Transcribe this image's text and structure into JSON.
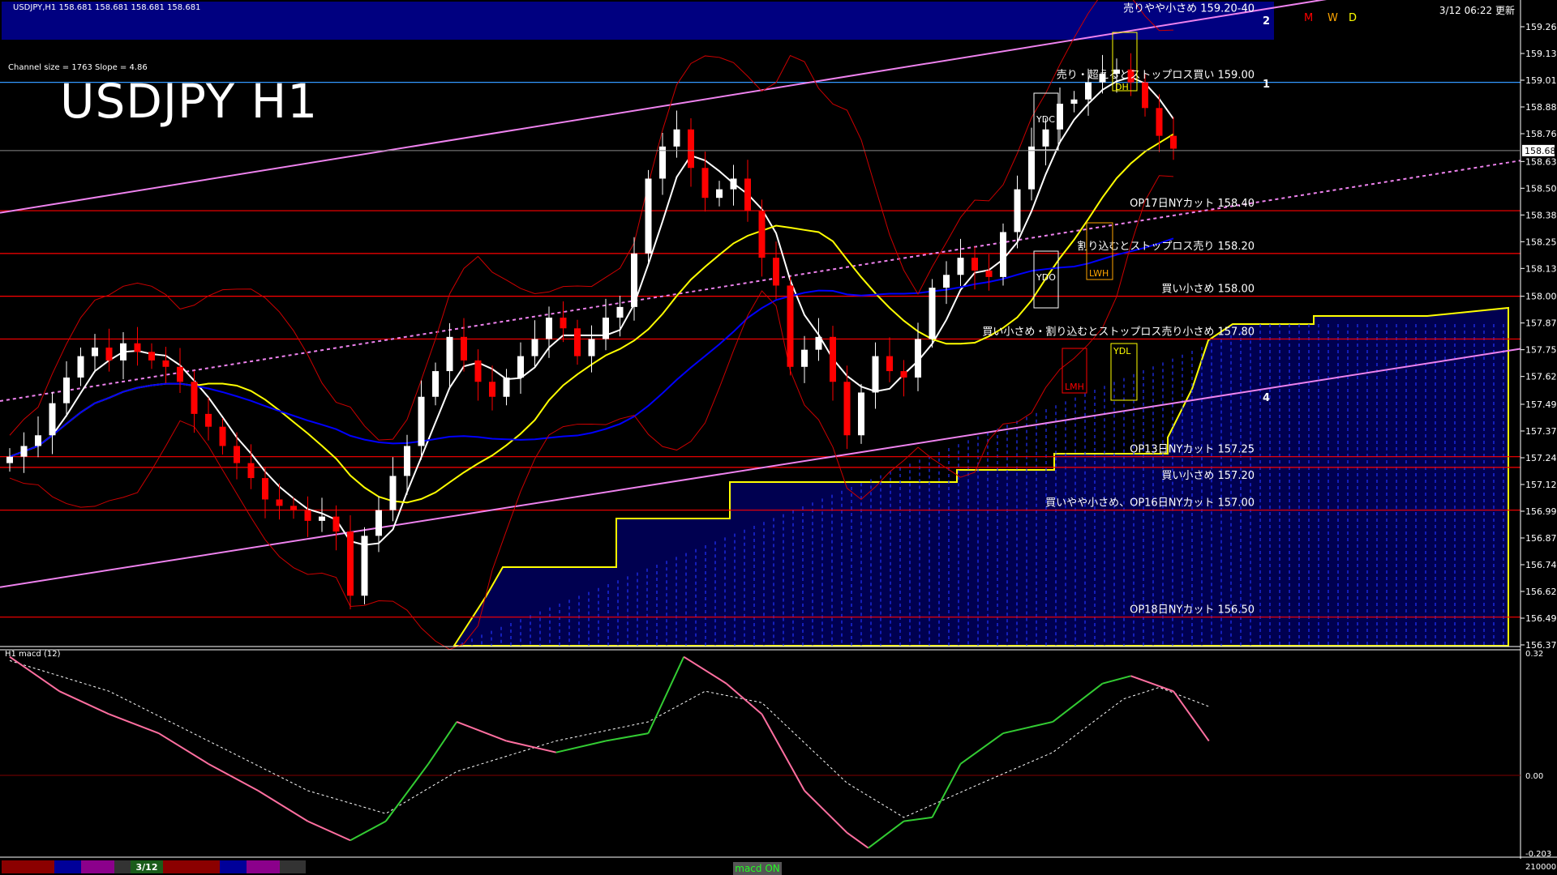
{
  "window": {
    "header": "USDJPY,H1  158.681 158.681 158.681 158.681",
    "updated": "3/12 06:22 更新",
    "channel_info": "Channel size = 1763 Slope = 4.86",
    "big_title": "USDJPY H1",
    "macd_label": "H1  macd (12)",
    "bottom_date": "3/12",
    "macd_toggle": "macd ON"
  },
  "colors": {
    "background": "#000000",
    "top_band": "#000080",
    "level_line": "#ff0000",
    "resistance_line": "#3399ff",
    "channel": "#ee82ee",
    "bull": "#ffffff",
    "bear": "#ff0000",
    "ma_fast": "#ffffff",
    "ma_mid": "#ffff00",
    "ma_slow": "#0000ff",
    "macd_up": "#33cc33",
    "macd_down": "#ff6fa0",
    "signal": "#ffffff"
  },
  "chart_data": [
    {
      "type": "candlestick",
      "title": "USDJPY H1",
      "ylim": [
        156.37,
        159.26
      ],
      "yticks": [
        "159.260",
        "159.135",
        "159.010",
        "158.885",
        "158.760",
        "158.630",
        "158.505",
        "158.380",
        "158.255",
        "158.130",
        "158.000",
        "157.875",
        "157.750",
        "157.625",
        "157.495",
        "157.370",
        "157.245",
        "157.120",
        "156.995",
        "156.870",
        "156.745",
        "156.620",
        "156.495",
        "156.370"
      ],
      "current_price": "158.681",
      "closes": [
        157.25,
        157.3,
        157.35,
        157.5,
        157.62,
        157.72,
        157.76,
        157.7,
        157.78,
        157.74,
        157.7,
        157.67,
        157.6,
        157.45,
        157.39,
        157.3,
        157.22,
        157.15,
        157.05,
        157.02,
        157.0,
        156.95,
        156.97,
        156.9,
        156.6,
        156.88,
        157.0,
        157.16,
        157.3,
        157.53,
        157.65,
        157.81,
        157.7,
        157.6,
        157.53,
        157.62,
        157.72,
        157.8,
        157.9,
        157.85,
        157.72,
        157.8,
        157.9,
        157.95,
        158.2,
        158.55,
        158.7,
        158.78,
        158.6,
        158.46,
        158.5,
        158.55,
        158.4,
        158.18,
        158.05,
        157.67,
        157.75,
        157.81,
        157.6,
        157.35,
        157.55,
        157.72,
        157.65,
        157.62,
        157.8,
        158.04,
        158.1,
        158.18,
        158.12,
        158.09,
        158.3,
        158.5,
        158.7,
        158.78,
        158.9,
        158.92,
        159.0,
        159.04,
        159.06,
        159.0,
        158.88,
        158.75,
        158.69
      ],
      "levels": [
        {
          "price": 159.3,
          "label": "売りやや小さめ 159.20-40",
          "color": "#ffffff",
          "line": false
        },
        {
          "price": 159.0,
          "label": "売り・超えるとストップロス買い 159.00",
          "color": "#3399ff",
          "line": true
        },
        {
          "price": 158.4,
          "label": "OP17日NYカット 158.40",
          "color": "#ff0000",
          "line": true
        },
        {
          "price": 158.2,
          "label": "割り込むとストップロス売り 158.20",
          "color": "#ff0000",
          "line": true
        },
        {
          "price": 158.0,
          "label": "買い小さめ 158.00",
          "color": "#ff0000",
          "line": true
        },
        {
          "price": 157.8,
          "label": "買い小さめ・割り込むとストップロス売り小さめ 157.80",
          "color": "#ff0000",
          "line": true
        },
        {
          "price": 157.25,
          "label": "OP13日NYカット 157.25",
          "color": "#ff0000",
          "line": true
        },
        {
          "price": 157.2,
          "label": "買い小さめ 157.20",
          "color": "#ff0000",
          "line": true
        },
        {
          "price": 157.0,
          "label": "買いやや小さめ、OP16日NYカット 157.00",
          "color": "#ff0000",
          "line": true
        },
        {
          "price": 156.5,
          "label": "OP18日NYカット 156.50",
          "color": "#ff0000",
          "line": true
        }
      ],
      "channel": {
        "upper": [
          [
            0,
            158.39
          ],
          [
            93,
            159.39
          ]
        ],
        "middle": [
          [
            0,
            157.51
          ],
          [
            107,
            158.64
          ]
        ],
        "lower": [
          [
            0,
            156.64
          ],
          [
            107,
            157.76
          ]
        ]
      },
      "markers": [
        "YDC",
        "YDO",
        "YDL",
        "LWH",
        "LMH",
        "DH",
        "M",
        "W",
        "D",
        "1",
        "2",
        "4"
      ]
    },
    {
      "type": "line",
      "title": "H1  macd (12)",
      "ylim": [
        -0.203,
        0.32
      ],
      "yticks": [
        "0.32",
        "0.00",
        "-0.203"
      ],
      "macd": [
        [
          0,
          0.31
        ],
        [
          3.5,
          0.22
        ],
        [
          7,
          0.16
        ],
        [
          10.5,
          0.11
        ],
        [
          14,
          0.03
        ],
        [
          17.5,
          -0.04
        ],
        [
          21,
          -0.12
        ],
        [
          24,
          -0.17
        ],
        [
          26.5,
          -0.12
        ],
        [
          29.5,
          0.03
        ],
        [
          31.5,
          0.14
        ],
        [
          35,
          0.09
        ],
        [
          38.5,
          0.06
        ],
        [
          42,
          0.09
        ],
        [
          45,
          0.11
        ],
        [
          47.5,
          0.31
        ],
        [
          50.5,
          0.24
        ],
        [
          53,
          0.16
        ],
        [
          56,
          -0.04
        ],
        [
          59,
          -0.15
        ],
        [
          60.5,
          -0.19
        ],
        [
          63,
          -0.12
        ],
        [
          65,
          -0.11
        ],
        [
          67,
          0.03
        ],
        [
          70,
          0.11
        ],
        [
          73.5,
          0.14
        ],
        [
          77,
          0.24
        ],
        [
          79,
          0.26
        ],
        [
          82,
          0.22
        ],
        [
          84.5,
          0.09
        ]
      ],
      "signal": [
        [
          0,
          0.3
        ],
        [
          7,
          0.22
        ],
        [
          14,
          0.09
        ],
        [
          21,
          -0.04
        ],
        [
          26.5,
          -0.1
        ],
        [
          31.5,
          0.01
        ],
        [
          38.5,
          0.09
        ],
        [
          45,
          0.14
        ],
        [
          49,
          0.22
        ],
        [
          53,
          0.19
        ],
        [
          59,
          -0.02
        ],
        [
          63,
          -0.11
        ],
        [
          68.5,
          -0.02
        ],
        [
          73.5,
          0.06
        ],
        [
          78.5,
          0.2
        ],
        [
          81,
          0.23
        ],
        [
          84.5,
          0.18
        ]
      ],
      "volume_scale": "210000"
    }
  ]
}
